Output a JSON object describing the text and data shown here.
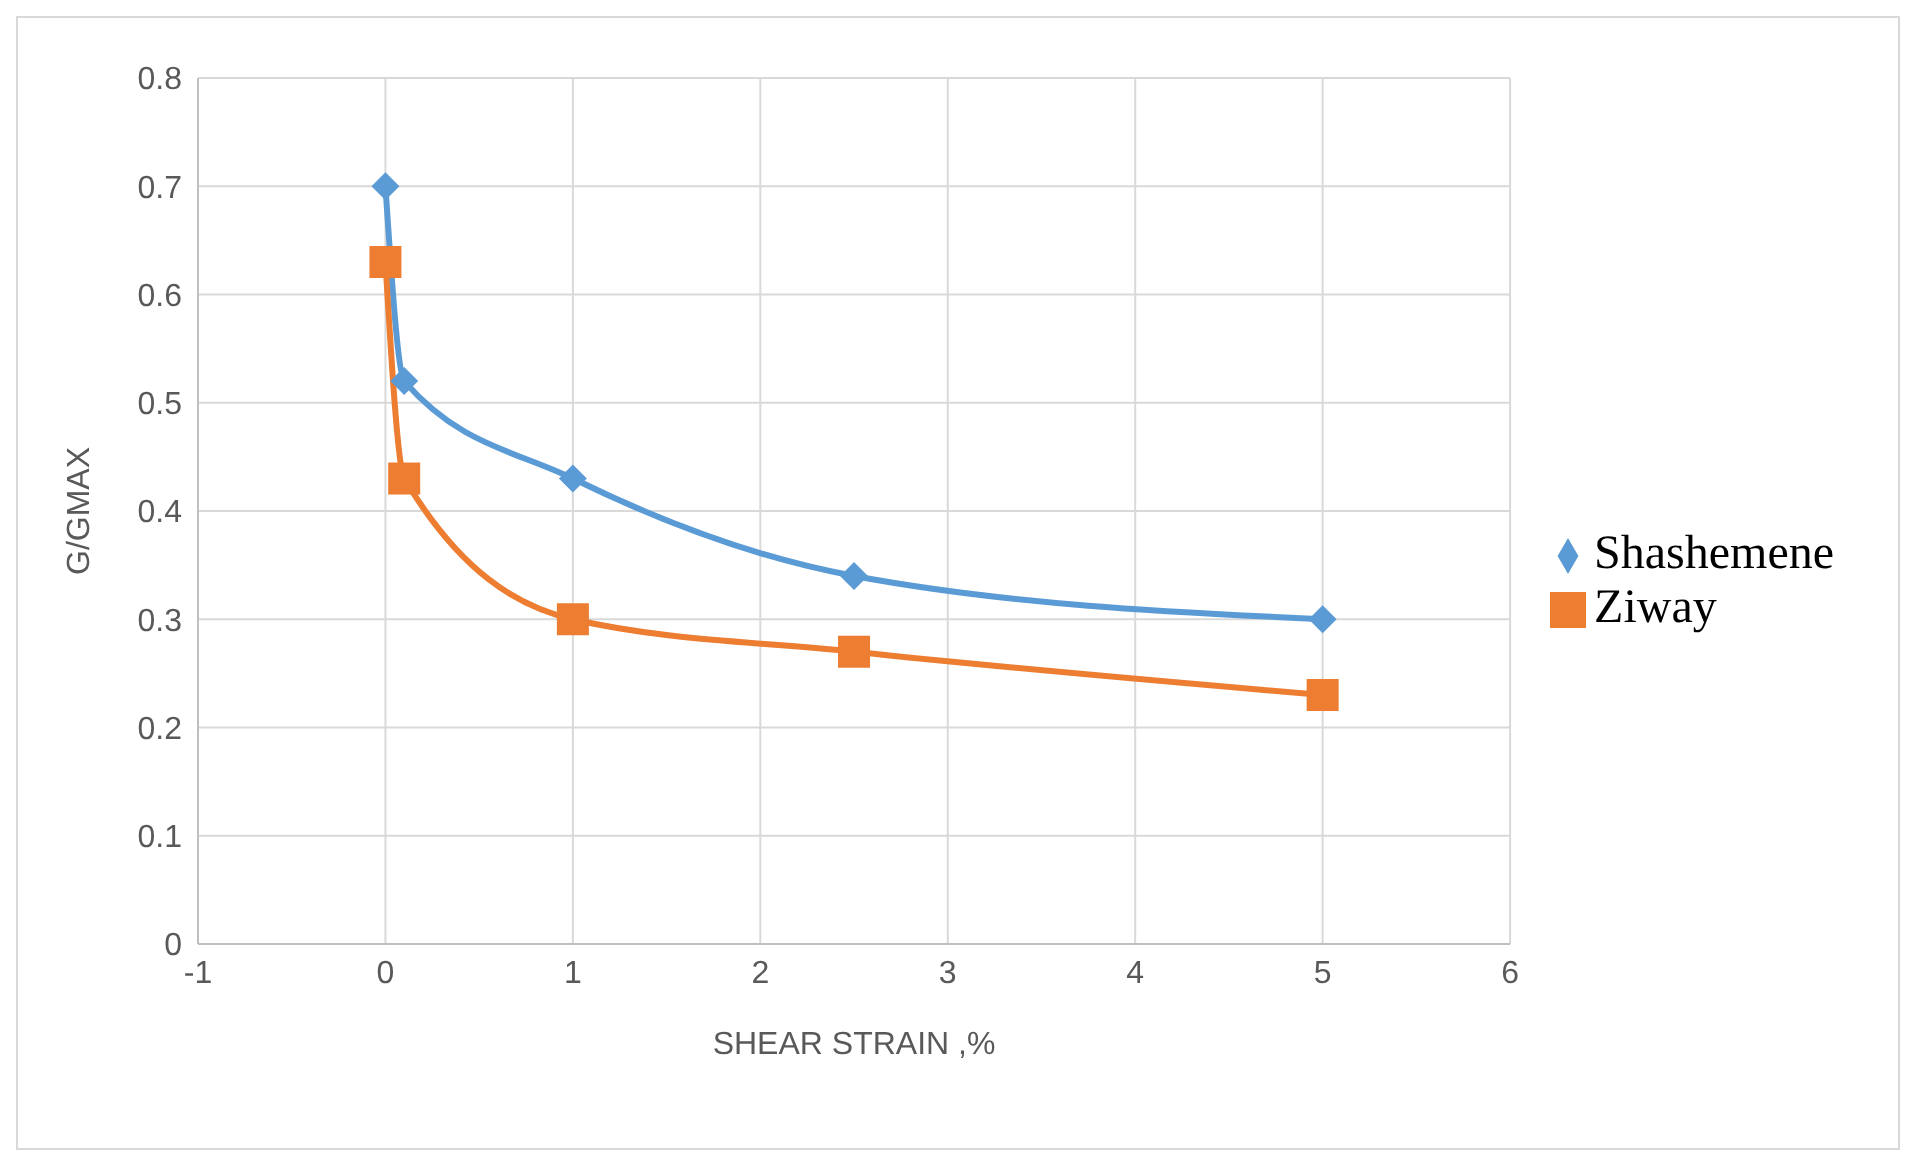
{
  "chart_data": {
    "type": "line",
    "xlabel": "SHEAR STRAIN ,%",
    "ylabel": "G/GMAX",
    "xlim": [
      -1,
      6
    ],
    "xticks": [
      -1,
      0,
      1,
      2,
      3,
      4,
      5,
      6
    ],
    "ylim": [
      0,
      0.8
    ],
    "yticks": [
      0,
      0.1,
      0.2,
      0.3,
      0.4,
      0.5,
      0.6,
      0.7,
      0.8
    ],
    "grid": true,
    "legend": "right",
    "series": [
      {
        "name": "Shashemene",
        "color": "#5b9bd5",
        "marker": "diamond",
        "x": [
          0,
          0.1,
          1,
          2.5,
          5
        ],
        "values": [
          0.7,
          0.52,
          0.43,
          0.34,
          0.3
        ]
      },
      {
        "name": "Ziway",
        "color": "#ed7d31",
        "marker": "square",
        "x": [
          0,
          0.1,
          1,
          2.5,
          5
        ],
        "values": [
          0.63,
          0.43,
          0.3,
          0.27,
          0.23
        ]
      }
    ]
  }
}
